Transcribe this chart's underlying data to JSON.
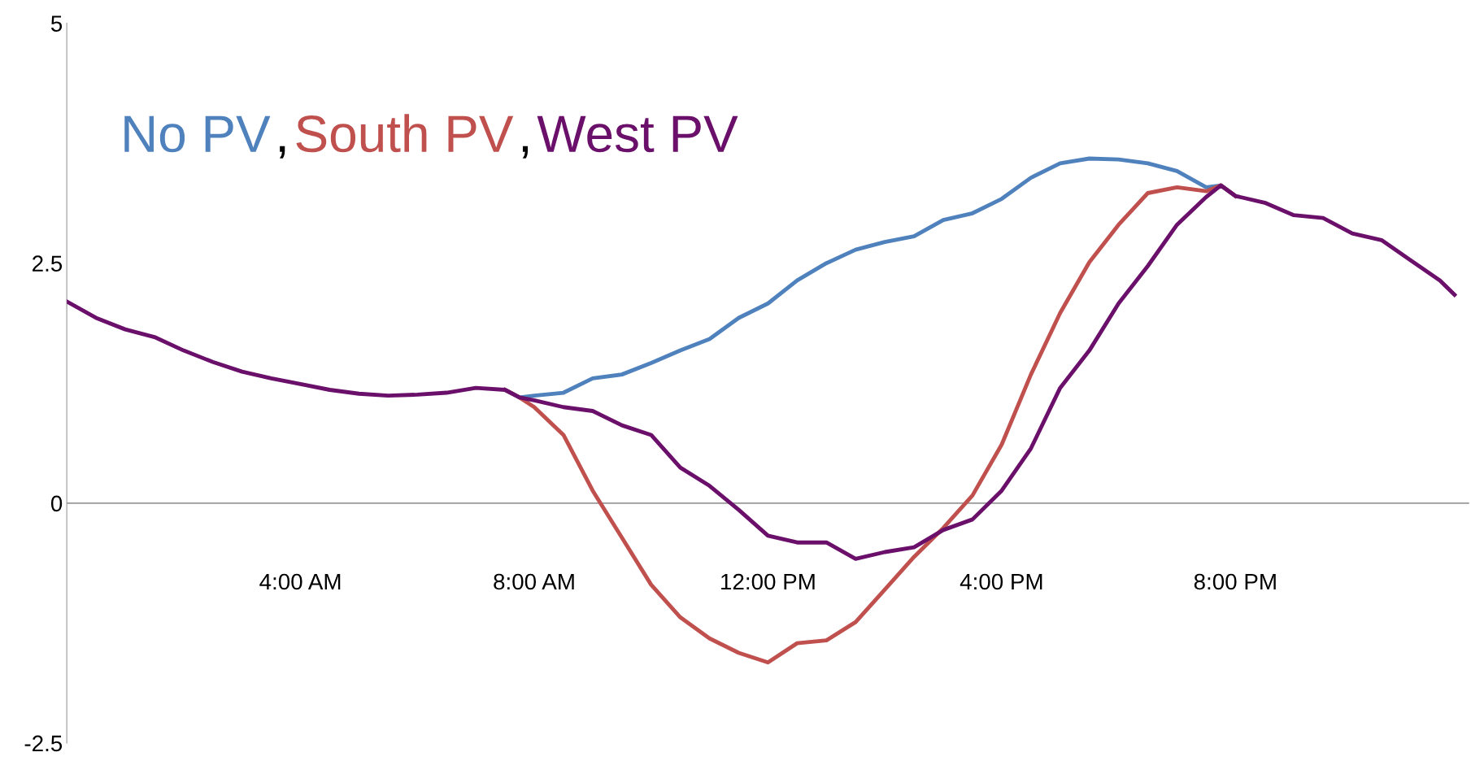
{
  "chart_data": {
    "type": "line",
    "x": [
      0,
      0.5,
      1,
      1.5,
      2,
      2.5,
      3,
      3.5,
      4,
      4.5,
      5,
      5.5,
      6,
      6.5,
      7,
      7.5,
      7.75,
      8,
      8.5,
      9,
      9.5,
      10,
      10.5,
      11,
      11.5,
      12,
      12.5,
      13,
      13.5,
      14,
      14.5,
      15,
      15.5,
      16,
      16.5,
      17,
      17.5,
      18,
      18.5,
      19,
      19.5,
      19.75,
      20,
      20.5,
      21,
      21.5,
      22,
      22.5,
      23,
      23.5,
      23.75
    ],
    "series": [
      {
        "name": "No PV",
        "color": "#4f81bd",
        "values": [
          null,
          null,
          null,
          null,
          null,
          null,
          null,
          null,
          null,
          null,
          null,
          null,
          null,
          null,
          null,
          1.18,
          1.1,
          1.12,
          1.15,
          1.3,
          1.34,
          1.46,
          1.59,
          1.71,
          1.93,
          2.08,
          2.32,
          2.5,
          2.64,
          2.72,
          2.78,
          2.95,
          3.02,
          3.17,
          3.39,
          3.54,
          3.59,
          3.58,
          3.54,
          3.46,
          3.29,
          3.31,
          3.2,
          null,
          null,
          null,
          null,
          null,
          null,
          null,
          null
        ]
      },
      {
        "name": "South PV",
        "color": "#c0504d",
        "values": [
          null,
          null,
          null,
          null,
          null,
          null,
          null,
          null,
          null,
          null,
          null,
          null,
          null,
          null,
          null,
          1.18,
          1.1,
          1.0,
          0.71,
          0.13,
          -0.36,
          -0.85,
          -1.19,
          -1.41,
          -1.56,
          -1.66,
          -1.46,
          -1.43,
          -1.24,
          -0.9,
          -0.56,
          -0.26,
          0.08,
          0.61,
          1.34,
          1.98,
          2.51,
          2.9,
          3.23,
          3.29,
          3.25,
          3.31,
          3.2,
          null,
          null,
          null,
          null,
          null,
          null,
          null,
          null
        ]
      },
      {
        "name": "West PV",
        "color": "#6a0f6a",
        "values": [
          2.1,
          1.93,
          1.81,
          1.73,
          1.59,
          1.47,
          1.37,
          1.3,
          1.24,
          1.18,
          1.14,
          1.12,
          1.13,
          1.15,
          1.2,
          1.18,
          1.1,
          1.07,
          1.0,
          0.96,
          0.81,
          0.71,
          0.37,
          0.18,
          -0.07,
          -0.34,
          -0.41,
          -0.41,
          -0.58,
          -0.51,
          -0.46,
          -0.28,
          -0.17,
          0.13,
          0.57,
          1.2,
          1.59,
          2.08,
          2.47,
          2.9,
          3.19,
          3.31,
          3.2,
          3.13,
          3.0,
          2.97,
          2.81,
          2.74,
          2.53,
          2.32,
          2.17
        ]
      }
    ],
    "xlim": [
      0,
      24
    ],
    "xticks": [
      {
        "value": 4,
        "label": "4:00 AM"
      },
      {
        "value": 8,
        "label": "8:00 AM"
      },
      {
        "value": 12,
        "label": "12:00 PM"
      },
      {
        "value": 16,
        "label": "4:00 PM"
      },
      {
        "value": 20,
        "label": "8:00 PM"
      }
    ],
    "ylim": [
      -2.5,
      5
    ],
    "yticks": [
      -2.5,
      0,
      2.5,
      5
    ],
    "legend": "top left",
    "annotations": [
      ",",
      ","
    ],
    "ref_lines": [
      {
        "axis": "y",
        "value": 0,
        "color": "#999999"
      }
    ],
    "grid": false,
    "marker": "none",
    "line_style": "solid"
  }
}
